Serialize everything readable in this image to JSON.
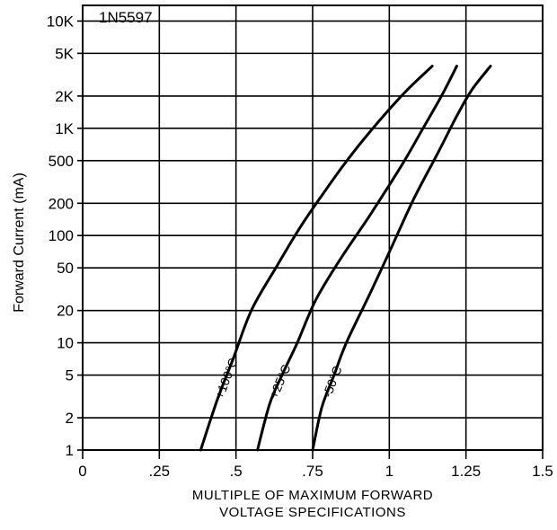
{
  "chart_data": {
    "type": "line",
    "title": "1N5597",
    "xlabel_lines": [
      "MULTIPLE OF MAXIMUM FORWARD",
      "VOLTAGE SPECIFICATIONS"
    ],
    "ylabel": "Forward Current (mA)",
    "xlim": [
      0,
      1.5
    ],
    "ylim": [
      1,
      14000
    ],
    "y_scale": "log",
    "grid": true,
    "x_ticks": [
      {
        "value": 0,
        "label": "0"
      },
      {
        "value": 0.25,
        "label": ".25"
      },
      {
        "value": 0.5,
        "label": ".5"
      },
      {
        "value": 0.75,
        "label": ".75"
      },
      {
        "value": 1.0,
        "label": "1"
      },
      {
        "value": 1.25,
        "label": "1.25"
      },
      {
        "value": 1.5,
        "label": "1.5"
      }
    ],
    "y_ticks": [
      {
        "value": 1,
        "label": "1"
      },
      {
        "value": 2,
        "label": "2"
      },
      {
        "value": 5,
        "label": "5"
      },
      {
        "value": 10,
        "label": "10"
      },
      {
        "value": 20,
        "label": "20"
      },
      {
        "value": 50,
        "label": "50"
      },
      {
        "value": 100,
        "label": "100"
      },
      {
        "value": 200,
        "label": "200"
      },
      {
        "value": 500,
        "label": "500"
      },
      {
        "value": 1000,
        "label": "1K"
      },
      {
        "value": 2000,
        "label": "2K"
      },
      {
        "value": 5000,
        "label": "5K"
      },
      {
        "value": 10000,
        "label": "10K"
      }
    ],
    "series": [
      {
        "name": "+100°C",
        "points": [
          [
            0.385,
            1
          ],
          [
            0.44,
            3
          ],
          [
            0.49,
            7
          ],
          [
            0.55,
            20
          ],
          [
            0.63,
            50
          ],
          [
            0.71,
            120
          ],
          [
            0.79,
            260
          ],
          [
            0.875,
            560
          ],
          [
            0.97,
            1200
          ],
          [
            1.06,
            2300
          ],
          [
            1.14,
            3800
          ]
        ]
      },
      {
        "name": "+25°C",
        "points": [
          [
            0.57,
            1
          ],
          [
            0.61,
            2.7
          ],
          [
            0.65,
            5
          ],
          [
            0.7,
            10
          ],
          [
            0.76,
            25
          ],
          [
            0.84,
            60
          ],
          [
            0.94,
            160
          ],
          [
            1.04,
            450
          ],
          [
            1.11,
            1000
          ],
          [
            1.17,
            2000
          ],
          [
            1.22,
            3800
          ]
        ]
      },
      {
        "name": "-50°C",
        "points": [
          [
            0.75,
            1
          ],
          [
            0.78,
            2.5
          ],
          [
            0.82,
            5
          ],
          [
            0.86,
            10
          ],
          [
            0.94,
            30
          ],
          [
            1.0,
            70
          ],
          [
            1.08,
            220
          ],
          [
            1.16,
            600
          ],
          [
            1.22,
            1300
          ],
          [
            1.27,
            2300
          ],
          [
            1.33,
            3800
          ]
        ]
      }
    ]
  }
}
